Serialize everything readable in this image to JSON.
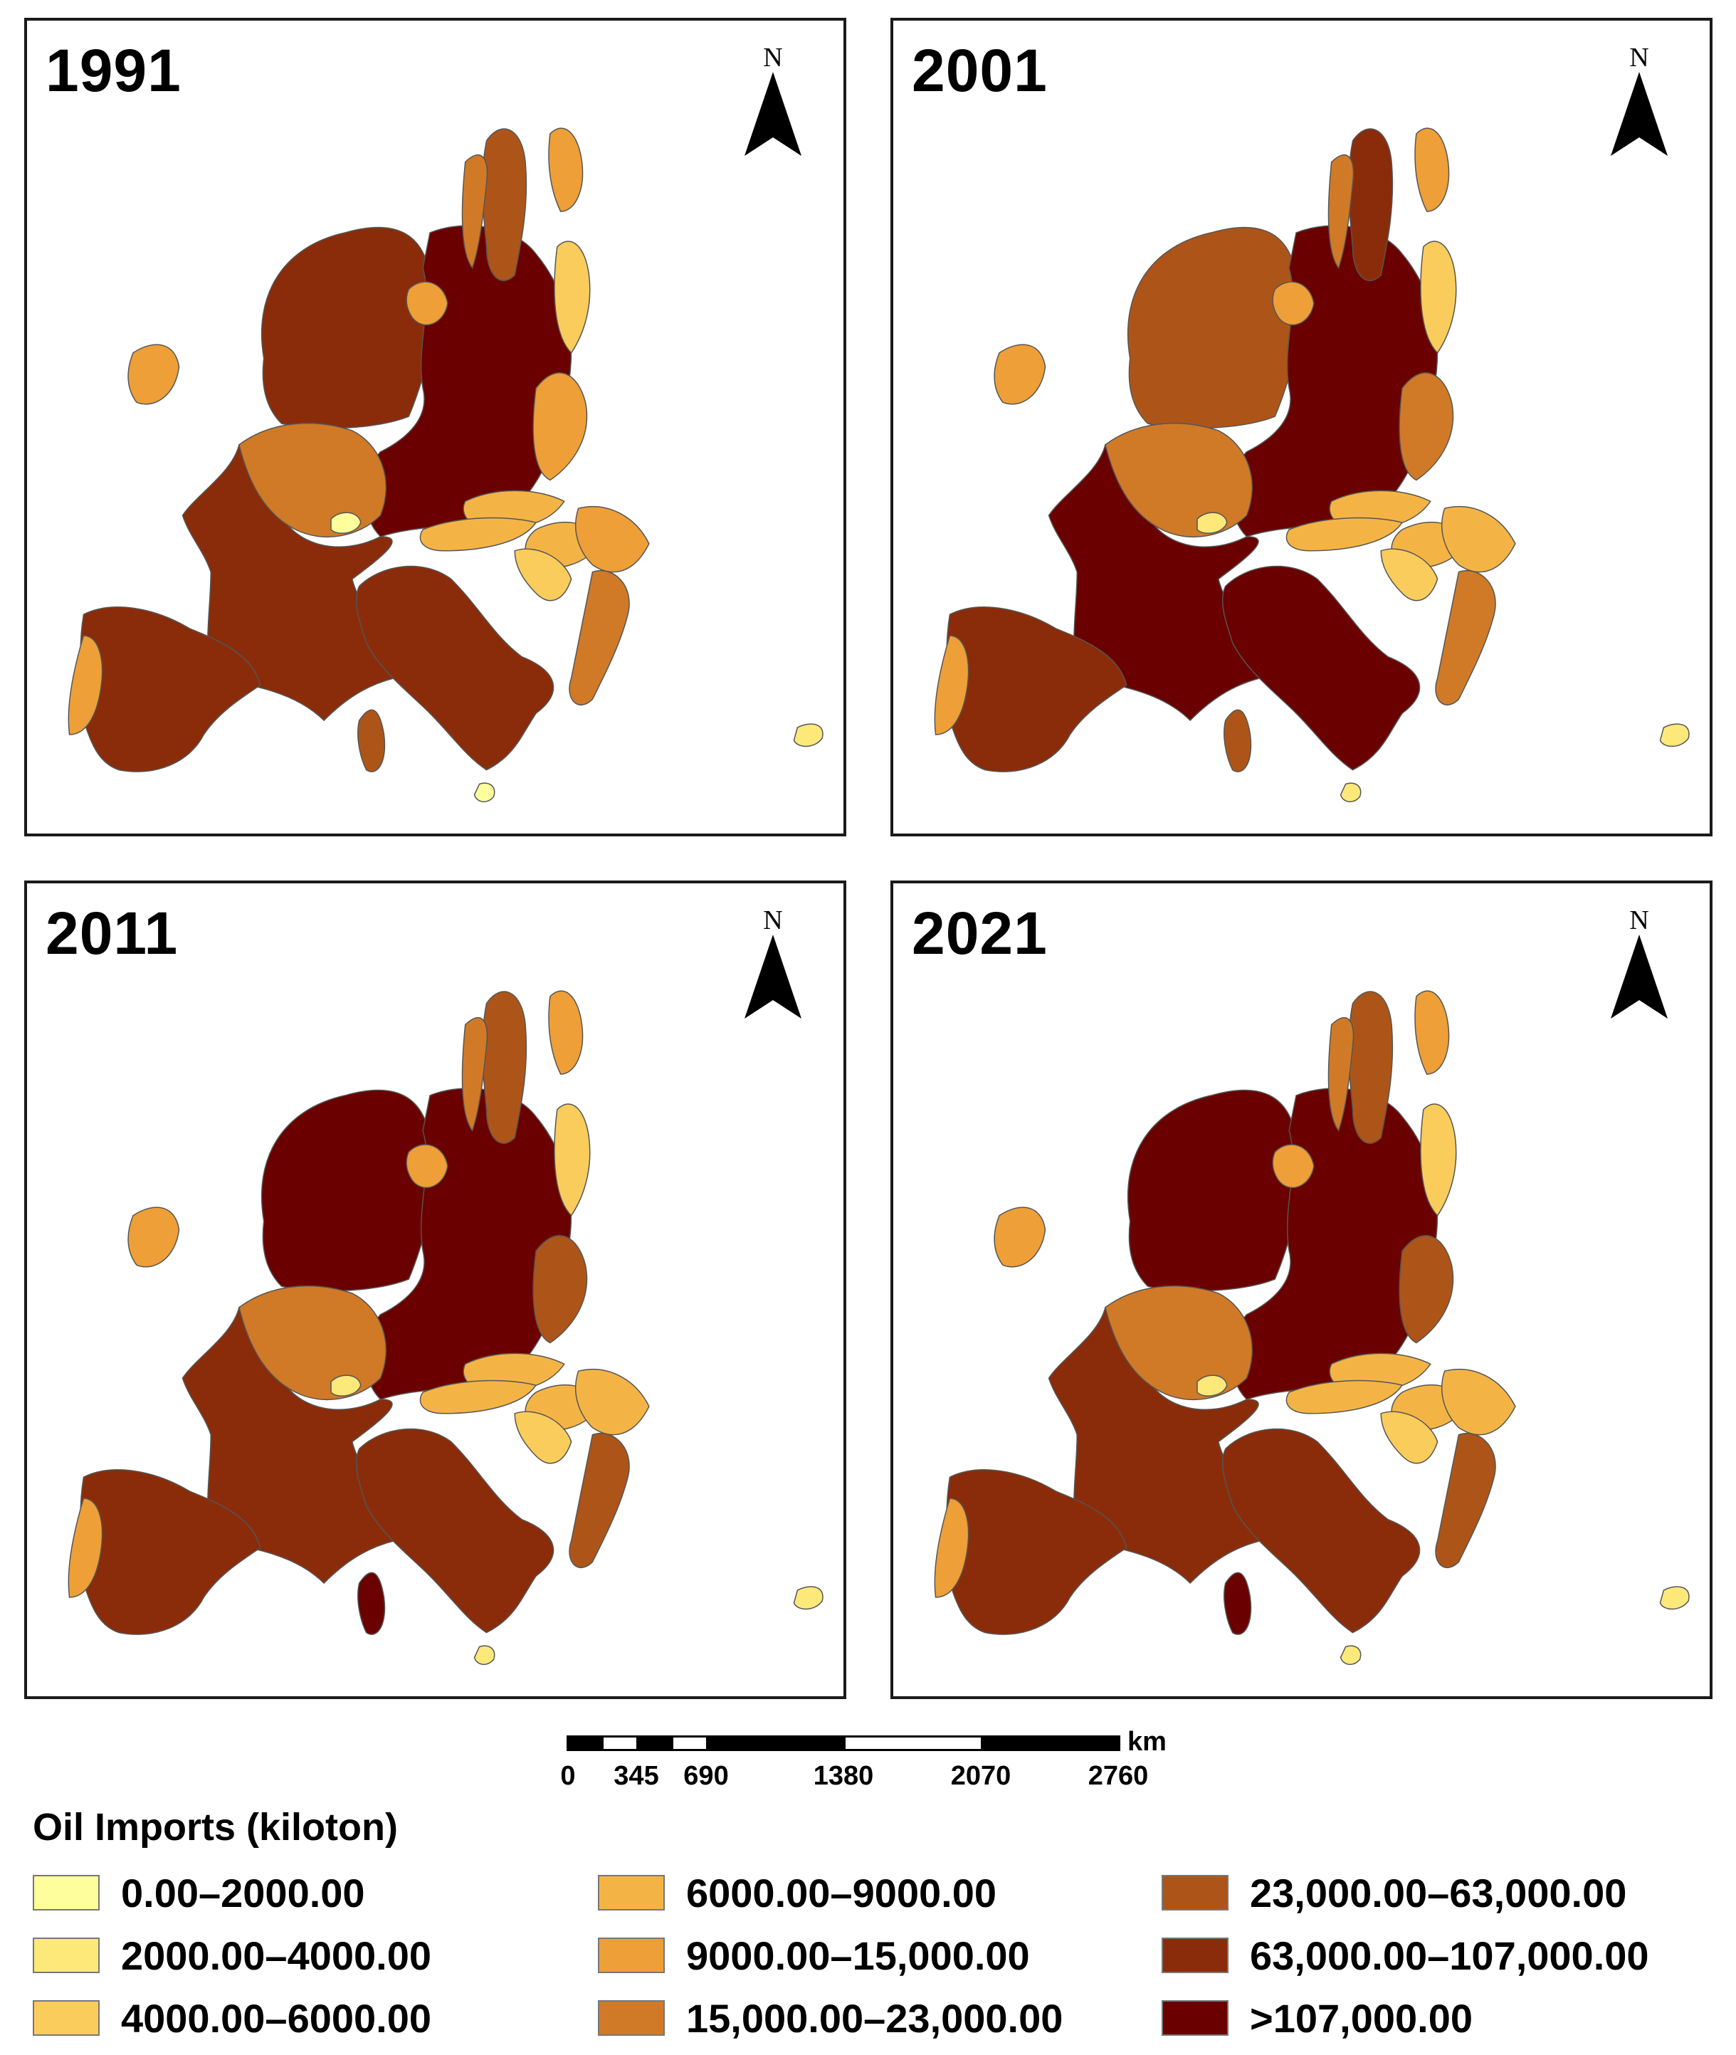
{
  "panels": [
    {
      "year": "1991",
      "north": "N",
      "fills": {
        "gb": 7,
        "de": 8,
        "fr": 7,
        "it": 7,
        "es": 7,
        "sw": 6,
        "be": 5,
        "ch": 0,
        "pl": 4,
        "se": 6,
        "fi": 4,
        "no": 5,
        "dk": 4,
        "ie": 4,
        "pt": 4,
        "gr": 5,
        "ro": 4,
        "hu": 3,
        "at": 3,
        "cz": 3,
        "balt": 2,
        "balk": 2,
        "cy": 1,
        "mt": 0
      }
    },
    {
      "year": "2001",
      "north": "N",
      "fills": {
        "gb": 6,
        "de": 8,
        "fr": 8,
        "it": 8,
        "es": 7,
        "sw": 6,
        "be": 5,
        "ch": 1,
        "pl": 5,
        "se": 7,
        "fi": 4,
        "no": 5,
        "dk": 4,
        "ie": 4,
        "pt": 4,
        "gr": 5,
        "ro": 3,
        "hu": 3,
        "at": 3,
        "cz": 3,
        "balt": 2,
        "balk": 2,
        "cy": 1,
        "mt": 1
      }
    },
    {
      "year": "2011",
      "north": "N",
      "fills": {
        "gb": 8,
        "de": 8,
        "fr": 7,
        "it": 7,
        "es": 7,
        "sw": 8,
        "be": 5,
        "ch": 1,
        "pl": 6,
        "se": 6,
        "fi": 4,
        "no": 5,
        "dk": 4,
        "ie": 4,
        "pt": 4,
        "gr": 6,
        "ro": 3,
        "hu": 3,
        "at": 3,
        "cz": 3,
        "balt": 2,
        "balk": 2,
        "cy": 1,
        "mt": 1
      }
    },
    {
      "year": "2021",
      "north": "N",
      "fills": {
        "gb": 8,
        "de": 8,
        "fr": 7,
        "it": 7,
        "es": 7,
        "sw": 8,
        "be": 5,
        "ch": 1,
        "pl": 6,
        "se": 6,
        "fi": 4,
        "no": 5,
        "dk": 4,
        "ie": 4,
        "pt": 4,
        "gr": 6,
        "ro": 3,
        "hu": 3,
        "at": 3,
        "cz": 3,
        "balt": 2,
        "balk": 2,
        "cy": 1,
        "mt": 1
      }
    }
  ],
  "scale": {
    "unit": "km",
    "ticks": [
      "0",
      "345",
      "690",
      "1380",
      "2070",
      "2760"
    ]
  },
  "legend": {
    "title": "Oil Imports (kiloton)",
    "items": [
      {
        "label": "0.00–2000.00",
        "color": "#fefe9d"
      },
      {
        "label": "2000.00–4000.00",
        "color": "#fde87a"
      },
      {
        "label": "4000.00–6000.00",
        "color": "#f9cc5c"
      },
      {
        "label": "6000.00–9000.00",
        "color": "#f4b445"
      },
      {
        "label": "9000.00–15,000.00",
        "color": "#ee9f37"
      },
      {
        "label": "15,000.00–23,000.00",
        "color": "#d07a27"
      },
      {
        "label": "23,000.00–63,000.00",
        "color": "#ad5518"
      },
      {
        "label": "63,000.00–107,000.00",
        "color": "#8a2c0a"
      },
      {
        "label": ">107,000.00",
        "color": "#6a0000"
      }
    ]
  }
}
